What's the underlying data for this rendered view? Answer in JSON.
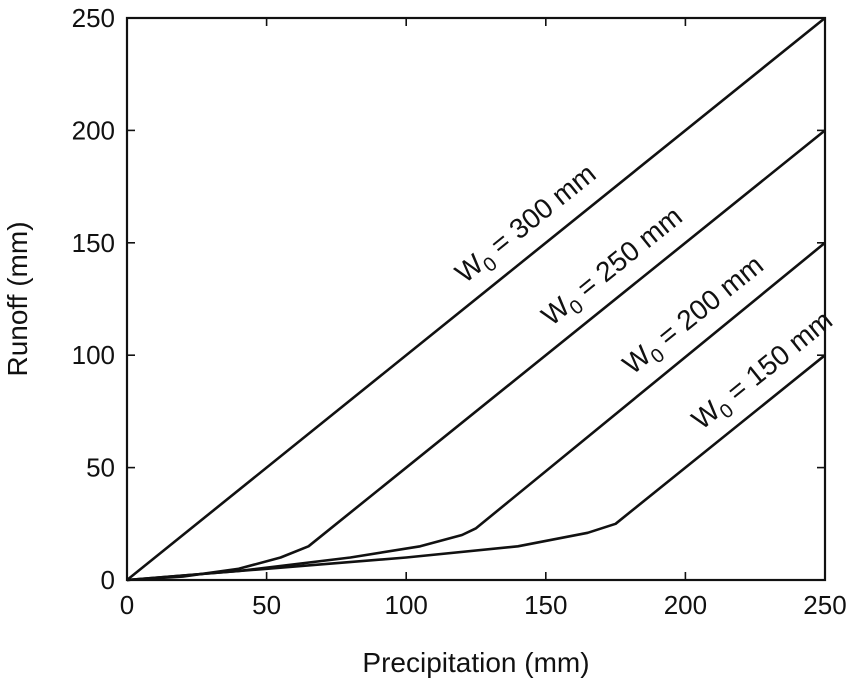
{
  "chart_data": {
    "type": "line",
    "xlabel": "Precipitation (mm)",
    "ylabel": "Runoff (mm)",
    "xlim": [
      0,
      250
    ],
    "ylim": [
      0,
      250
    ],
    "xticks": [
      0,
      50,
      100,
      150,
      200,
      250
    ],
    "yticks": [
      0,
      50,
      100,
      150,
      200,
      250
    ],
    "grid": false,
    "series": [
      {
        "label_main": "W",
        "label_sub": "0",
        "label_rest": " = 300 mm",
        "points": [
          [
            0,
            0
          ],
          [
            250,
            250
          ]
        ]
      },
      {
        "label_main": "W",
        "label_sub": "0",
        "label_rest": " = 250 mm",
        "points": [
          [
            0,
            0
          ],
          [
            20,
            1.5
          ],
          [
            40,
            5
          ],
          [
            55,
            10
          ],
          [
            65,
            15
          ],
          [
            250,
            200
          ]
        ]
      },
      {
        "label_main": "W",
        "label_sub": "0",
        "label_rest": " = 200 mm",
        "points": [
          [
            0,
            0
          ],
          [
            40,
            4
          ],
          [
            80,
            10
          ],
          [
            105,
            15
          ],
          [
            120,
            20
          ],
          [
            125,
            23
          ],
          [
            250,
            150
          ]
        ]
      },
      {
        "label_main": "W",
        "label_sub": "0",
        "label_rest": " = 150 mm",
        "points": [
          [
            0,
            0
          ],
          [
            50,
            5
          ],
          [
            100,
            10
          ],
          [
            140,
            15
          ],
          [
            165,
            21
          ],
          [
            175,
            25
          ],
          [
            250,
            100
          ]
        ]
      }
    ]
  }
}
